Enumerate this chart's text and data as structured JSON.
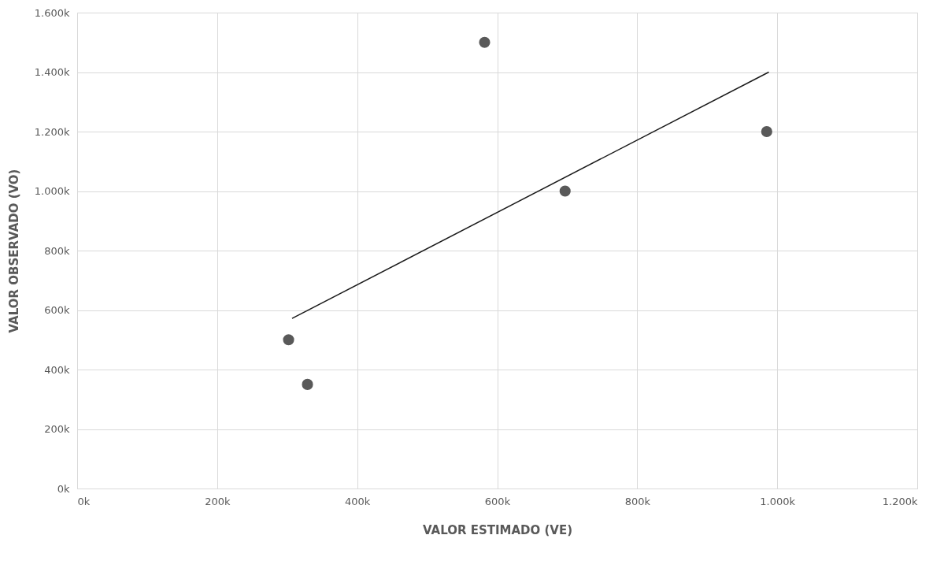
{
  "chart_data": {
    "type": "scatter",
    "xlabel": "VALOR ESTIMADO (VE)",
    "ylabel": "VALOR OBSERVADO (VO)",
    "series": [
      {
        "type": "scatter",
        "color": "#595959",
        "x": [
          302000,
          329000,
          582000,
          697000,
          985000
        ],
        "values": [
          500000,
          350000,
          1500000,
          1000000,
          1200000
        ],
        "marker": "circle"
      },
      {
        "type": "line",
        "color": "#1a1a1a",
        "x": [
          307000,
          988000
        ],
        "values": [
          572000,
          1400000
        ],
        "marker": "none",
        "line_style": "solid"
      }
    ],
    "xlim": [
      0,
      1200000
    ],
    "xticks": [
      {
        "value": 0,
        "label": "0k"
      },
      {
        "value": 200000,
        "label": "200k"
      },
      {
        "value": 400000,
        "label": "400k"
      },
      {
        "value": 600000,
        "label": "600k"
      },
      {
        "value": 800000,
        "label": "800k"
      },
      {
        "value": 1000000,
        "label": "1.000k"
      },
      {
        "value": 1200000,
        "label": "1.200k"
      }
    ],
    "ylim": [
      0,
      1600000
    ],
    "yticks": [
      {
        "value": 0,
        "label": "0k"
      },
      {
        "value": 200000,
        "label": "200k"
      },
      {
        "value": 400000,
        "label": "400k"
      },
      {
        "value": 600000,
        "label": "600k"
      },
      {
        "value": 800000,
        "label": "800k"
      },
      {
        "value": 1000000,
        "label": "1.000k"
      },
      {
        "value": 1200000,
        "label": "1.200k"
      },
      {
        "value": 1400000,
        "label": "1.400k"
      },
      {
        "value": 1600000,
        "label": "1.600k"
      }
    ],
    "grid": true,
    "legend": false
  }
}
